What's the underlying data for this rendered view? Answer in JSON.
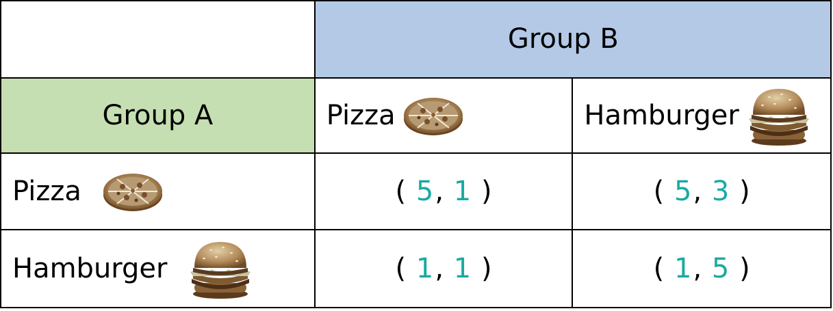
{
  "colors": {
    "group_b_header_bg": "#b3c9e6",
    "group_a_header_bg": "#c6dfb2",
    "payoff_number": "#1aa9a3",
    "text": "#000000",
    "border": "#000000"
  },
  "header": {
    "group_b": "Group B",
    "group_a": "Group A"
  },
  "columns": [
    {
      "label": "Pizza",
      "icon": "pizza-icon"
    },
    {
      "label": "Hamburger",
      "icon": "hamburger-icon"
    }
  ],
  "rows": [
    {
      "label": "Pizza",
      "icon": "pizza-icon",
      "payoffs": [
        {
          "a": "5",
          "b": "1"
        },
        {
          "a": "5",
          "b": "3"
        }
      ]
    },
    {
      "label": "Hamburger",
      "icon": "hamburger-icon",
      "payoffs": [
        {
          "a": "1",
          "b": "1"
        },
        {
          "a": "1",
          "b": "5"
        }
      ]
    }
  ],
  "punctuation": {
    "open": "(",
    "separator": ",",
    "close": ")"
  }
}
